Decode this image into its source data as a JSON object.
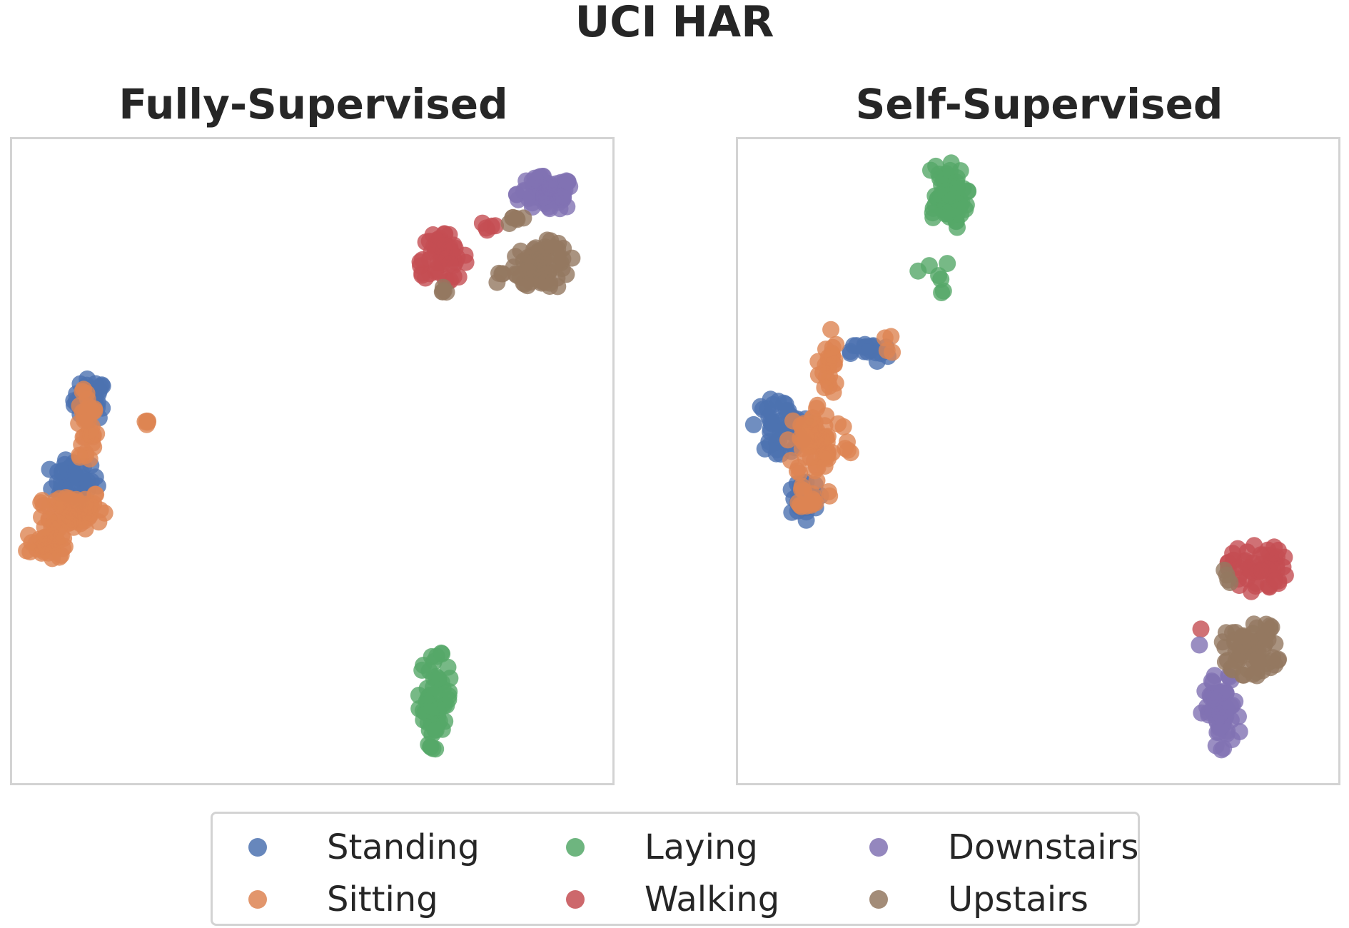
{
  "suptitle": "UCI HAR",
  "colors": {
    "Standing": "#4c72b0",
    "Sitting": "#dd8452",
    "Laying": "#55a868",
    "Walking": "#c44e52",
    "Downstairs": "#8172b3",
    "Upstairs": "#937860"
  },
  "legend": {
    "items": [
      {
        "label": "Standing",
        "icon": "circle-marker-icon"
      },
      {
        "label": "Sitting",
        "icon": "circle-marker-icon"
      },
      {
        "label": "Laying",
        "icon": "circle-marker-icon"
      },
      {
        "label": "Walking",
        "icon": "circle-marker-icon"
      },
      {
        "label": "Downstairs",
        "icon": "circle-marker-icon"
      },
      {
        "label": "Upstairs",
        "icon": "circle-marker-icon"
      }
    ],
    "columns": 3,
    "placement": "bottom-center"
  },
  "chart_data": [
    {
      "type": "scatter",
      "title": "Fully-Supervised",
      "xlabel": "",
      "ylabel": "",
      "xlim": [
        0,
        100
      ],
      "ylim": [
        0,
        100
      ],
      "axes_visible": false,
      "grid": false,
      "series": [
        {
          "name": "Standing",
          "clusters": [
            {
              "cx": 13,
              "cy": 59.5,
              "rx": 2.5,
              "ry": 3,
              "n": 45
            },
            {
              "cx": 10,
              "cy": 47,
              "rx": 4,
              "ry": 3,
              "n": 40
            }
          ]
        },
        {
          "name": "Sitting",
          "clusters": [
            {
              "cx": 12.5,
              "cy": 55,
              "rx": 1.5,
              "ry": 6,
              "n": 35
            },
            {
              "cx": 10,
              "cy": 42.5,
              "rx": 5,
              "ry": 3,
              "n": 70
            },
            {
              "cx": 5.5,
              "cy": 37,
              "rx": 3,
              "ry": 2.5,
              "n": 35
            },
            {
              "cx": 22.5,
              "cy": 55.5,
              "rx": 0.8,
              "ry": 1.5,
              "n": 5
            }
          ]
        },
        {
          "name": "Laying",
          "clusters": [
            {
              "cx": 70.5,
              "cy": 13,
              "rx": 2.5,
              "ry": 7,
              "n": 60
            }
          ]
        },
        {
          "name": "Walking",
          "clusters": [
            {
              "cx": 71.5,
              "cy": 81.5,
              "rx": 4,
              "ry": 3.5,
              "n": 55
            },
            {
              "cx": 79.5,
              "cy": 86.5,
              "rx": 1.5,
              "ry": 1,
              "n": 5
            }
          ]
        },
        {
          "name": "Downstairs",
          "clusters": [
            {
              "cx": 89,
              "cy": 91.5,
              "rx": 4.5,
              "ry": 2.5,
              "n": 80
            }
          ]
        },
        {
          "name": "Upstairs",
          "clusters": [
            {
              "cx": 88.5,
              "cy": 80.5,
              "rx": 4.5,
              "ry": 3.5,
              "n": 70
            },
            {
              "cx": 81.5,
              "cy": 78.5,
              "rx": 1.2,
              "ry": 0.8,
              "n": 4
            },
            {
              "cx": 84,
              "cy": 87.5,
              "rx": 1.5,
              "ry": 0.8,
              "n": 6
            },
            {
              "cx": 71.5,
              "cy": 76.5,
              "rx": 1.2,
              "ry": 0.8,
              "n": 5
            }
          ]
        }
      ]
    },
    {
      "type": "scatter",
      "title": "Self-Supervised",
      "xlabel": "",
      "ylabel": "",
      "xlim": [
        0,
        100
      ],
      "ylim": [
        0,
        100
      ],
      "axes_visible": false,
      "grid": false,
      "series": [
        {
          "name": "Standing",
          "clusters": [
            {
              "cx": 7,
              "cy": 55.5,
              "rx": 4,
              "ry": 4,
              "n": 45
            },
            {
              "cx": 10.5,
              "cy": 44,
              "rx": 3,
              "ry": 3,
              "n": 30
            },
            {
              "cx": 22,
              "cy": 67,
              "rx": 3,
              "ry": 1.5,
              "n": 18
            }
          ]
        },
        {
          "name": "Sitting",
          "clusters": [
            {
              "cx": 13.5,
              "cy": 53,
              "rx": 5,
              "ry": 5.5,
              "n": 70
            },
            {
              "cx": 15,
              "cy": 65,
              "rx": 1.5,
              "ry": 5.5,
              "n": 25
            },
            {
              "cx": 12.5,
              "cy": 44.5,
              "rx": 2.5,
              "ry": 2,
              "n": 15
            },
            {
              "cx": 25.5,
              "cy": 68.5,
              "rx": 1,
              "ry": 1.5,
              "n": 4
            }
          ]
        },
        {
          "name": "Laying",
          "clusters": [
            {
              "cx": 34.5,
              "cy": 91,
              "rx": 3.5,
              "ry": 5,
              "n": 60
            },
            {
              "cx": 32.5,
              "cy": 79,
              "rx": 2.5,
              "ry": 3,
              "n": 7
            }
          ]
        },
        {
          "name": "Walking",
          "clusters": [
            {
              "cx": 86.5,
              "cy": 33.5,
              "rx": 4.5,
              "ry": 3.5,
              "n": 55
            },
            {
              "cx": 77,
              "cy": 24,
              "rx": 0.6,
              "ry": 0.6,
              "n": 1
            }
          ]
        },
        {
          "name": "Downstairs",
          "clusters": [
            {
              "cx": 80.5,
              "cy": 10.5,
              "rx": 3,
              "ry": 6,
              "n": 60
            },
            {
              "cx": 77,
              "cy": 21.5,
              "rx": 0.6,
              "ry": 0.6,
              "n": 1
            }
          ]
        },
        {
          "name": "Upstairs",
          "clusters": [
            {
              "cx": 85.5,
              "cy": 21,
              "rx": 4.5,
              "ry": 4,
              "n": 65
            },
            {
              "cx": 81.5,
              "cy": 31.5,
              "rx": 1.5,
              "ry": 1.5,
              "n": 4
            }
          ]
        }
      ]
    }
  ]
}
